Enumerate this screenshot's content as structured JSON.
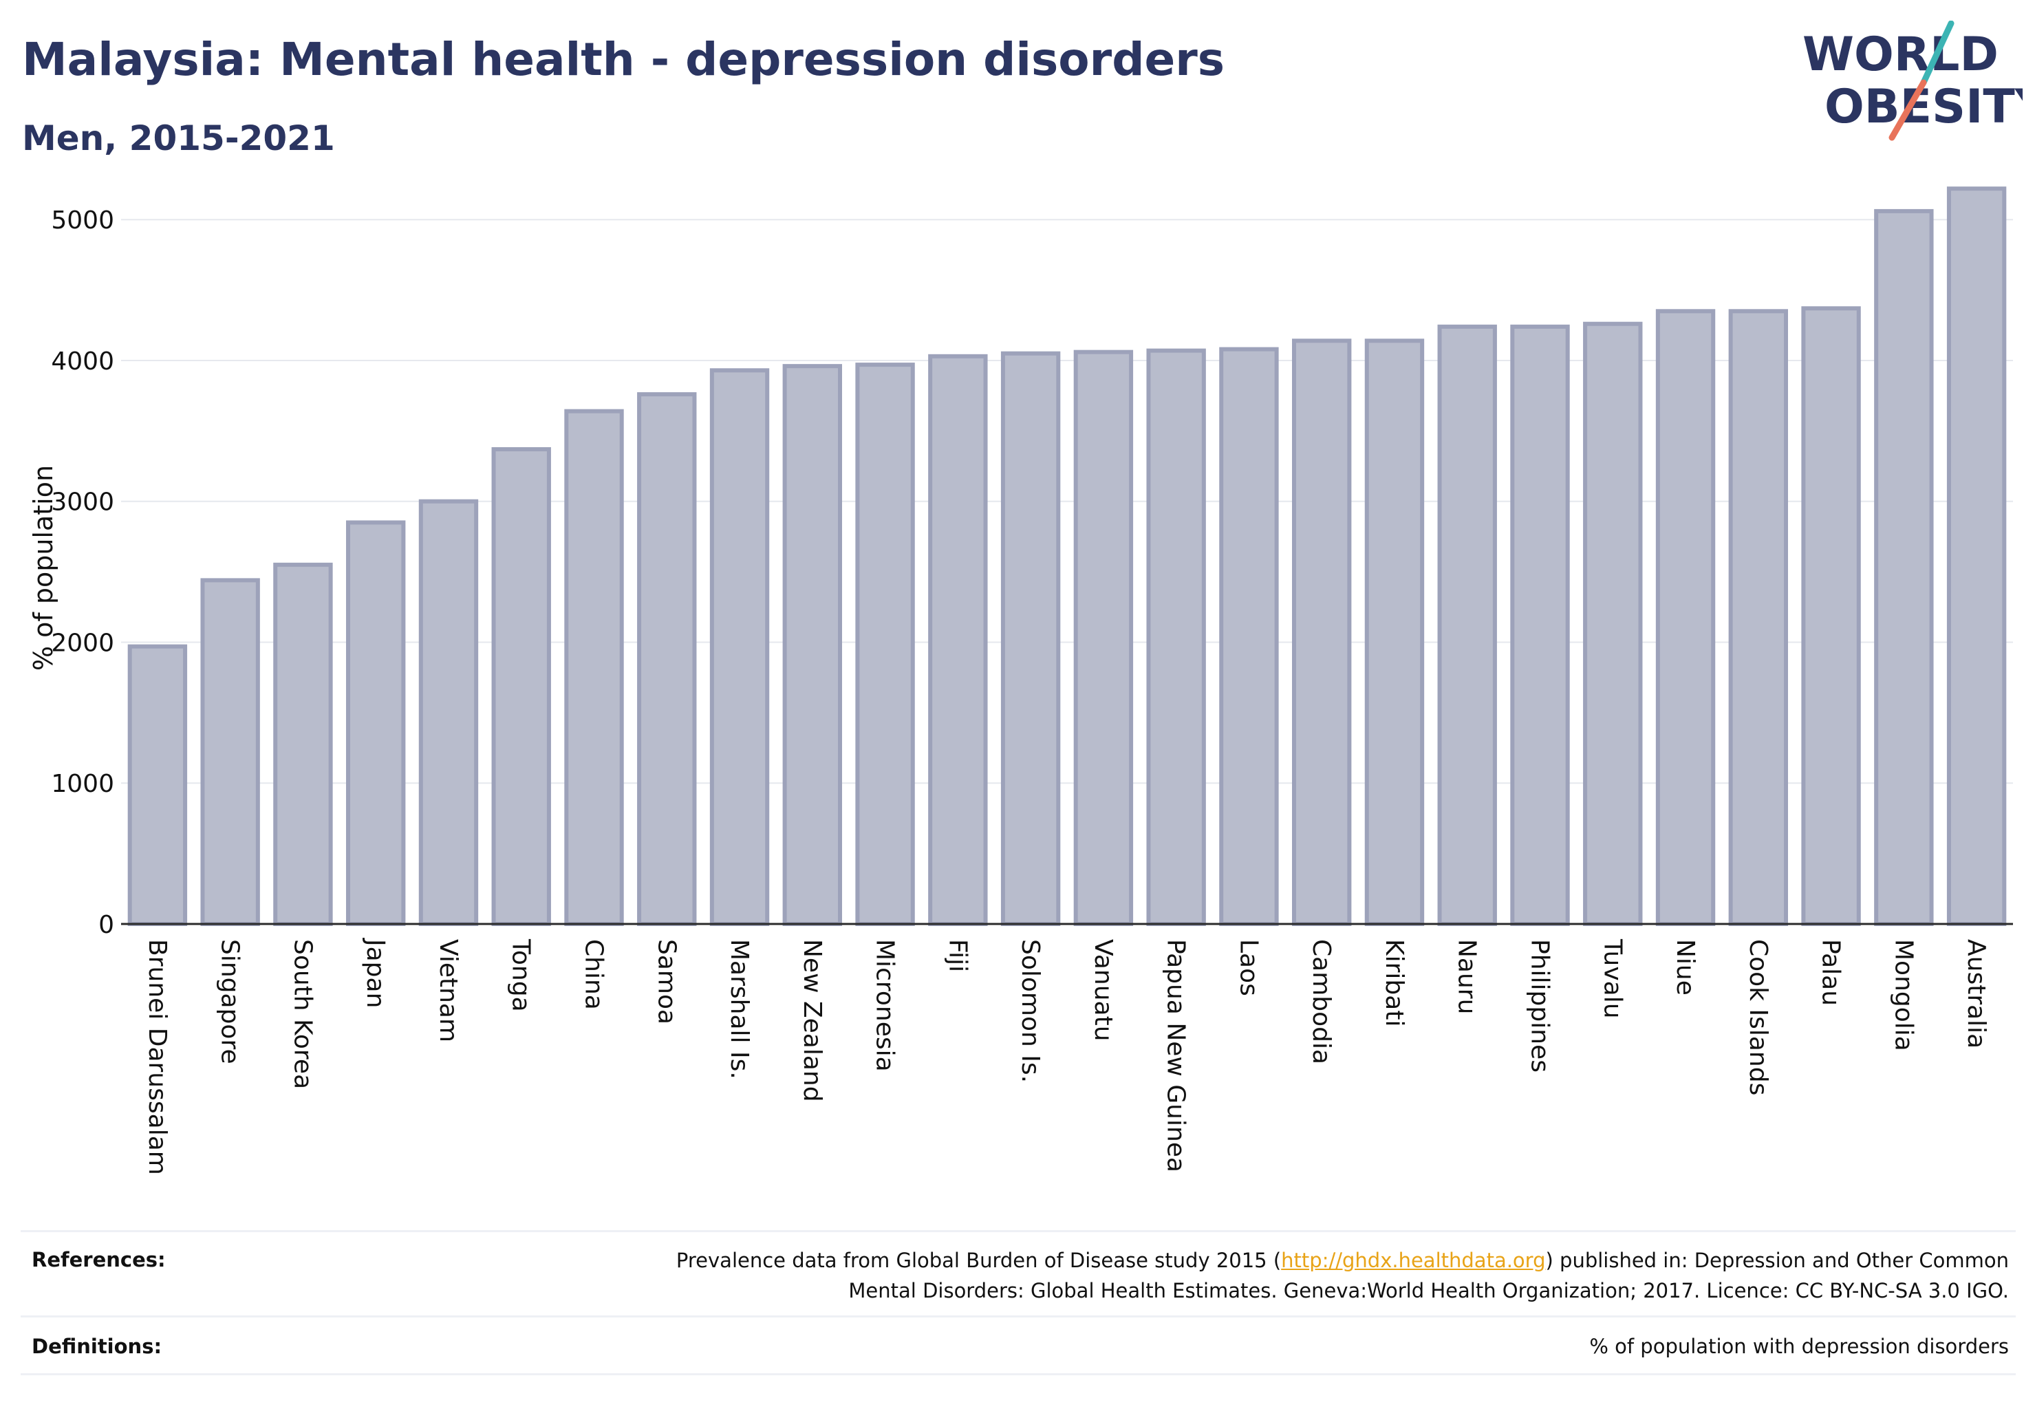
{
  "header": {
    "title": "Malaysia: Mental health - depression disorders",
    "subtitle": "Men, 2015-2021"
  },
  "logo": {
    "line1": "WORLD",
    "line2": "OBESITY",
    "text_color": "#2b3561",
    "slash_top_color": "#3cb4b4",
    "slash_bottom_color": "#e8735a"
  },
  "chart_data": {
    "type": "bar",
    "title": "",
    "xlabel": "",
    "ylabel": "% of population",
    "ylim": [
      0,
      5250
    ],
    "yticks": [
      0,
      1000,
      2000,
      3000,
      4000,
      5000
    ],
    "grid": true,
    "legend": "none",
    "bar_fill": "#b8bccc",
    "bar_stroke": "#9da2ba",
    "categories": [
      "Brunei Darussalam",
      "Singapore",
      "South Korea",
      "Japan",
      "Vietnam",
      "Tonga",
      "China",
      "Samoa",
      "Marshall Is.",
      "New Zealand",
      "Micronesia",
      "Fiji",
      "Solomon Is.",
      "Vanuatu",
      "Papua New Guinea",
      "Laos",
      "Cambodia",
      "Kiribati",
      "Nauru",
      "Philippines",
      "Tuvalu",
      "Niue",
      "Cook Islands",
      "Palau",
      "Mongolia",
      "Australia"
    ],
    "values": [
      1970,
      2440,
      2550,
      2850,
      3000,
      3370,
      3640,
      3760,
      3930,
      3960,
      3970,
      4030,
      4050,
      4060,
      4070,
      4080,
      4140,
      4140,
      4240,
      4240,
      4260,
      4350,
      4350,
      4370,
      5060,
      5220
    ]
  },
  "footer": {
    "references_label": "References:",
    "references_text_before": "Prevalence data from Global Burden of Disease study 2015 (",
    "references_link": "http://ghdx.healthdata.org",
    "references_text_after": ") published in: Depression and Other Common",
    "references_line2": "Mental Disorders: Global Health Estimates. Geneva:World Health Organization; 2017. Licence: CC BY-NC-SA 3.0 IGO.",
    "definitions_label": "Definitions:",
    "definitions_text": "% of population with depression disorders"
  }
}
